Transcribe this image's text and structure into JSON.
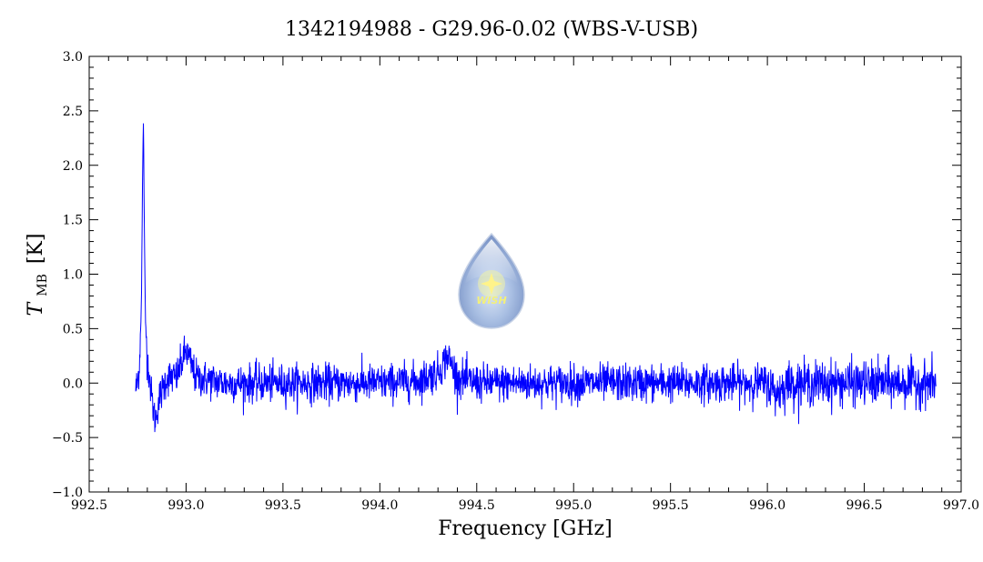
{
  "chart_data": {
    "type": "line",
    "title": "1342194988 - G29.96-0.02 (WBS-V-USB)",
    "xlabel": "Frequency [GHz]",
    "ylabel_main": "T",
    "ylabel_sub": "MB",
    "ylabel_unit": "[K]",
    "xlim": [
      992.5,
      997.0
    ],
    "ylim": [
      -1.0,
      3.0
    ],
    "x_ticks": [
      992.5,
      993.0,
      993.5,
      994.0,
      994.5,
      995.0,
      995.5,
      996.0,
      996.5,
      997.0
    ],
    "x_tick_labels": [
      "992.5",
      "993.0",
      "993.5",
      "994.0",
      "994.5",
      "995.0",
      "995.5",
      "996.0",
      "996.5",
      "997.0"
    ],
    "y_ticks": [
      -1.0,
      -0.5,
      0.0,
      0.5,
      1.0,
      1.5,
      2.0,
      2.5,
      3.0
    ],
    "y_tick_labels": [
      "−1.0",
      "−0.5",
      "0.0",
      "0.5",
      "1.0",
      "1.5",
      "2.0",
      "2.5",
      "3.0"
    ],
    "grid": false,
    "series": [
      {
        "color": "#0000ff",
        "x": [
          992.74,
          992.75,
          992.76,
          992.77,
          992.775,
          992.78,
          992.785,
          992.79,
          992.8,
          992.81,
          992.82,
          992.84,
          992.86,
          992.9,
          992.95,
          993.0,
          993.05,
          993.2,
          993.5,
          993.8,
          994.0,
          994.2,
          994.3,
          994.35,
          994.4,
          994.5,
          995.0,
          995.5,
          996.0,
          996.05,
          996.1,
          996.3,
          996.5,
          996.7,
          996.87
        ],
        "y": [
          -0.05,
          0.0,
          0.2,
          0.8,
          1.8,
          2.45,
          1.3,
          0.6,
          0.2,
          0.1,
          -0.1,
          -0.35,
          -0.15,
          0.05,
          0.05,
          0.3,
          0.05,
          0.0,
          0.0,
          0.0,
          0.0,
          0.02,
          0.1,
          0.25,
          0.05,
          0.0,
          0.0,
          0.0,
          0.0,
          -0.1,
          0.0,
          0.0,
          0.0,
          0.0,
          0.0
        ]
      }
    ],
    "logo_text": "WISH"
  }
}
